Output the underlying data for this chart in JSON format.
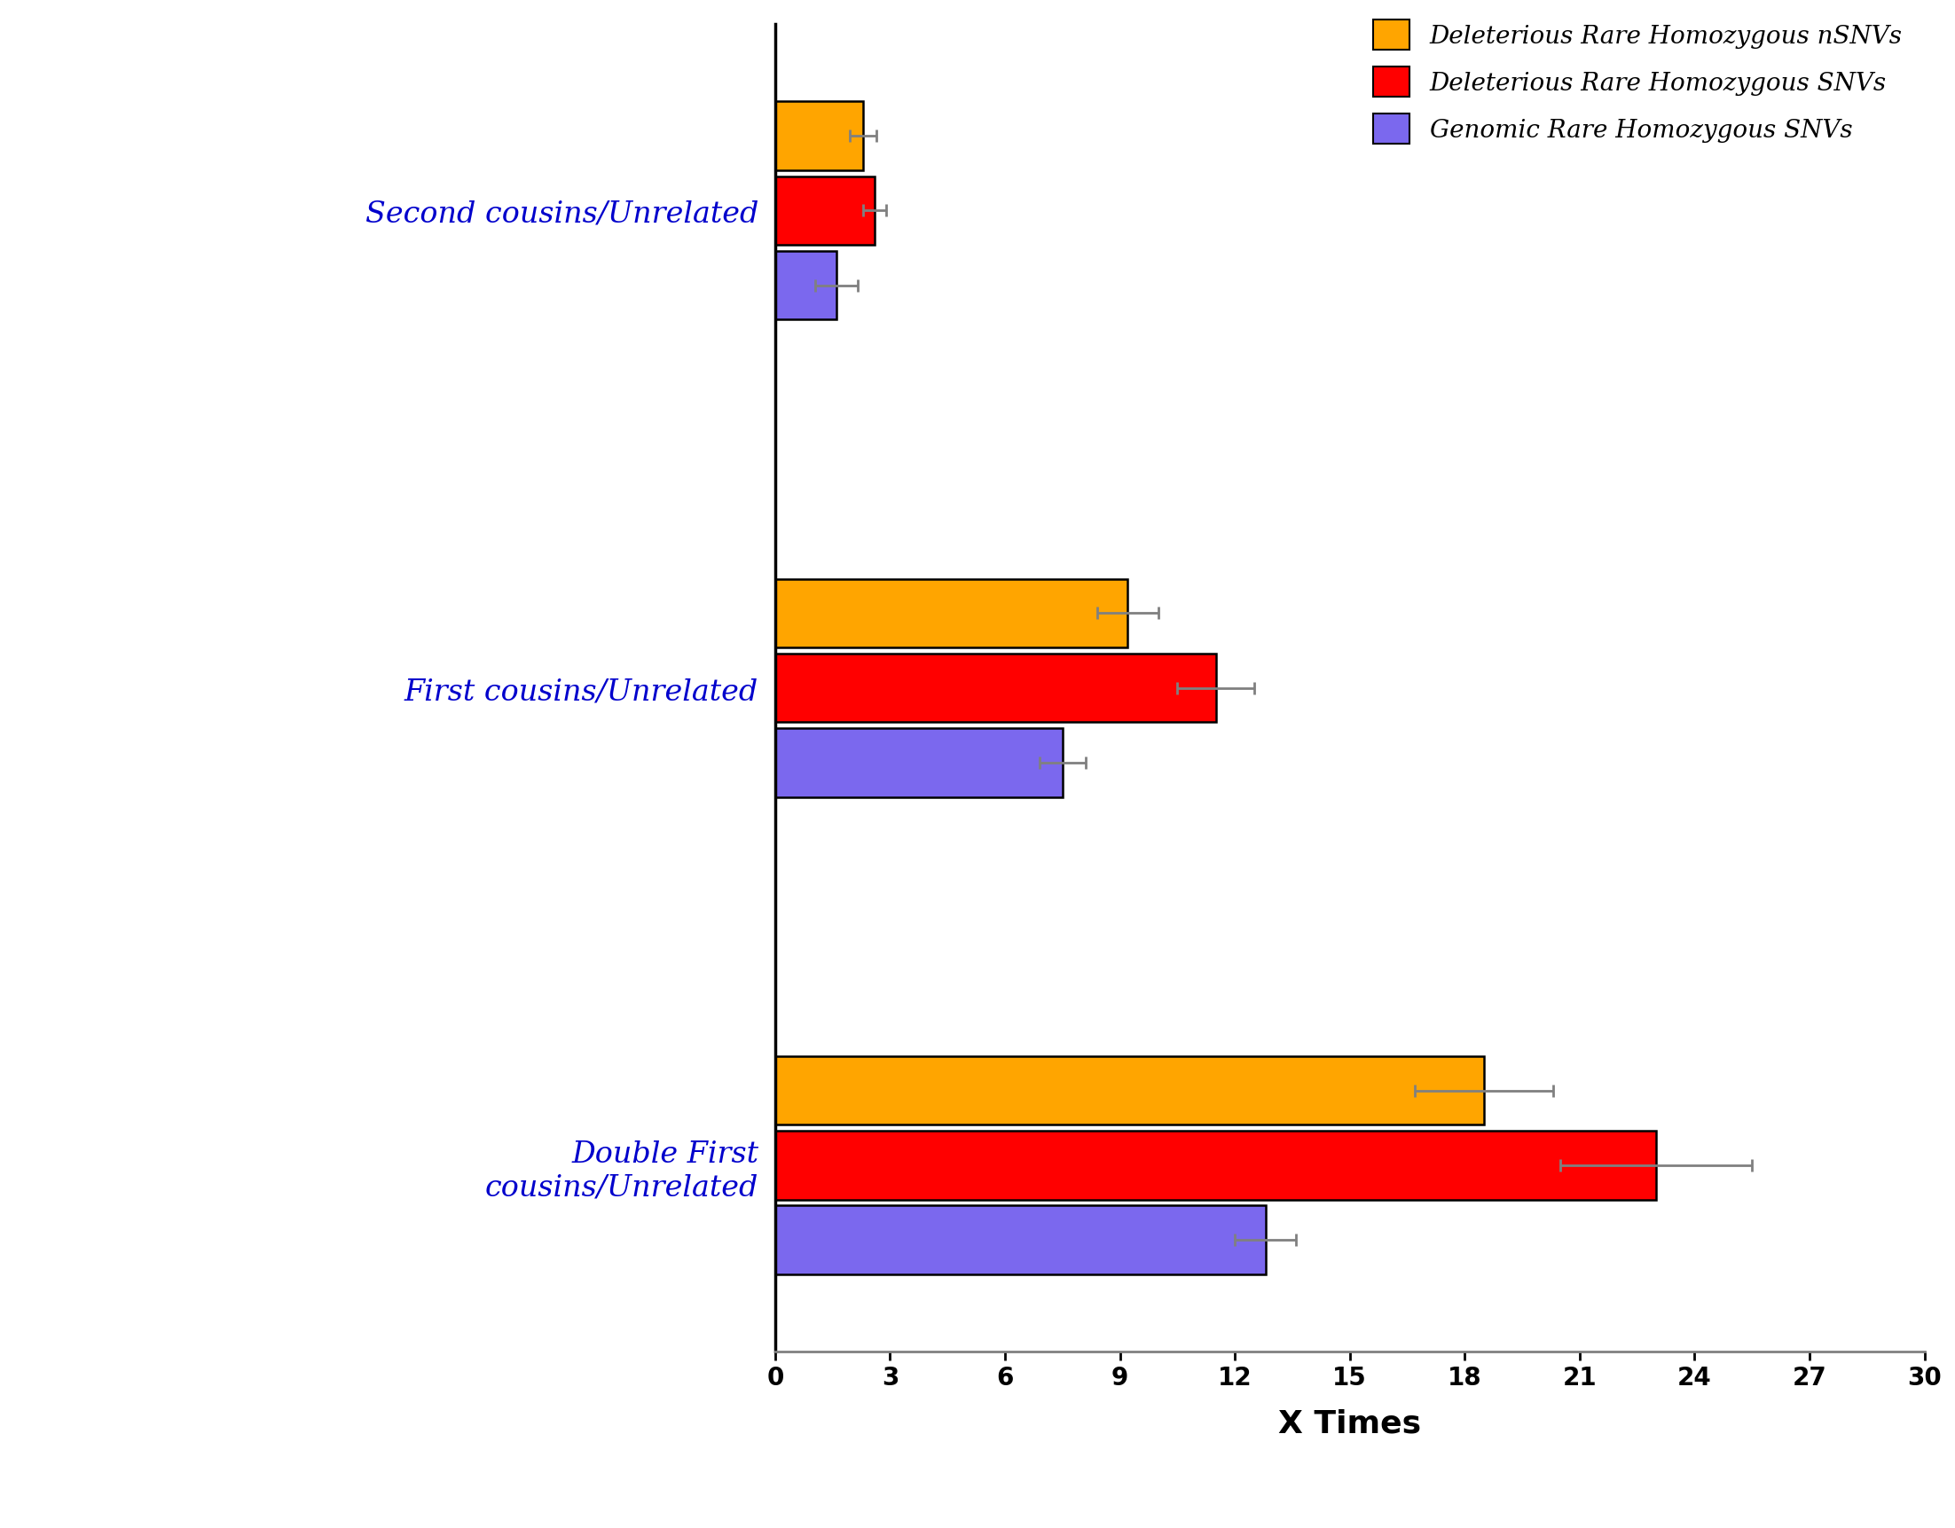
{
  "categories": [
    "Double First\ncousins/Unrelated",
    "First cousins/Unrelated",
    "Second cousins/Unrelated"
  ],
  "series": [
    {
      "label": "Deleterious Rare Homozygous nSNVs",
      "color": "#FFA500",
      "values": [
        18.5,
        9.2,
        2.3
      ],
      "errors": [
        1.8,
        0.8,
        0.35
      ]
    },
    {
      "label": "Deleterious Rare Homozygous SNVs",
      "color": "#FF0000",
      "values": [
        23.0,
        11.5,
        2.6
      ],
      "errors": [
        2.5,
        1.0,
        0.3
      ]
    },
    {
      "label": "Genomic Rare Homozygous SNVs",
      "color": "#7B68EE",
      "values": [
        12.8,
        7.5,
        1.6
      ],
      "errors": [
        0.8,
        0.6,
        0.55
      ]
    }
  ],
  "xlim": [
    0,
    30
  ],
  "xticks": [
    0,
    3,
    6,
    9,
    12,
    15,
    18,
    21,
    24,
    27,
    30
  ],
  "xlabel": "X Times",
  "background_color": "#FFFFFF",
  "bar_height": 0.18,
  "legend_fontsize": 20,
  "tick_fontsize": 20,
  "label_fontsize": 24,
  "xlabel_fontsize": 26,
  "edgecolor": "#000000",
  "ylabel_color": "#0000CC",
  "legend_text_color": "#000000"
}
